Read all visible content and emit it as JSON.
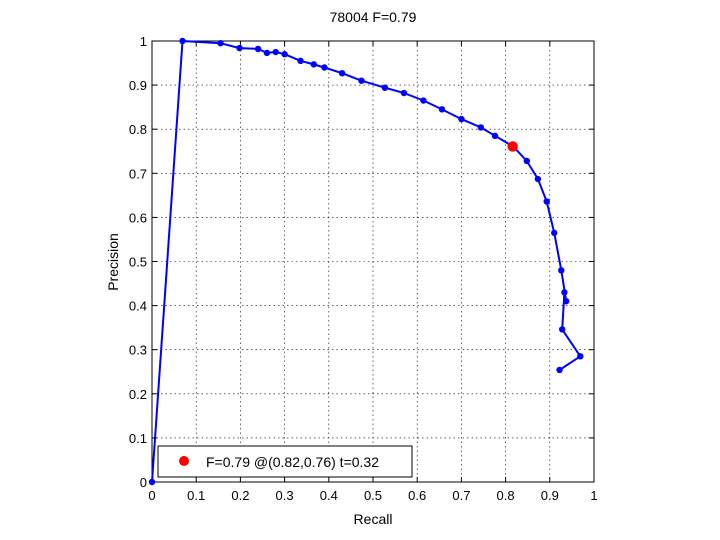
{
  "chart_data": {
    "type": "line",
    "title": "78004 F=0.79",
    "xlabel": "Recall",
    "ylabel": "Precision",
    "xlim": [
      0,
      1
    ],
    "ylim": [
      0,
      1
    ],
    "grid": true,
    "xticks": [
      "0",
      "0.1",
      "0.2",
      "0.3",
      "0.4",
      "0.5",
      "0.6",
      "0.7",
      "0.8",
      "0.9",
      "1"
    ],
    "yticks": [
      "0",
      "0.1",
      "0.2",
      "0.3",
      "0.4",
      "0.5",
      "0.6",
      "0.7",
      "0.8",
      "0.9",
      "1"
    ],
    "colors": {
      "curve": "#0000ff",
      "best_point": "#ff0000"
    },
    "series": [
      {
        "x": [
          0.0,
          0.069,
          0.155,
          0.198,
          0.24,
          0.26,
          0.28,
          0.3,
          0.336,
          0.366,
          0.39,
          0.43,
          0.474,
          0.527,
          0.57,
          0.614,
          0.656,
          0.7,
          0.744,
          0.776,
          0.818,
          0.848,
          0.873,
          0.893,
          0.91,
          0.926,
          0.937,
          0.933,
          0.928,
          0.969,
          0.922
        ],
        "y": [
          0.0,
          1.0,
          0.995,
          0.984,
          0.982,
          0.973,
          0.975,
          0.97,
          0.955,
          0.947,
          0.94,
          0.927,
          0.91,
          0.894,
          0.882,
          0.865,
          0.845,
          0.823,
          0.804,
          0.785,
          0.76,
          0.728,
          0.687,
          0.636,
          0.565,
          0.48,
          0.41,
          0.43,
          0.346,
          0.285,
          0.254
        ]
      }
    ],
    "best_point": {
      "x": 0.816,
      "y": 0.761
    },
    "legend": {
      "position": "bottom-left",
      "text": "F=0.79 @(0.82,0.76) t=0.32"
    }
  }
}
